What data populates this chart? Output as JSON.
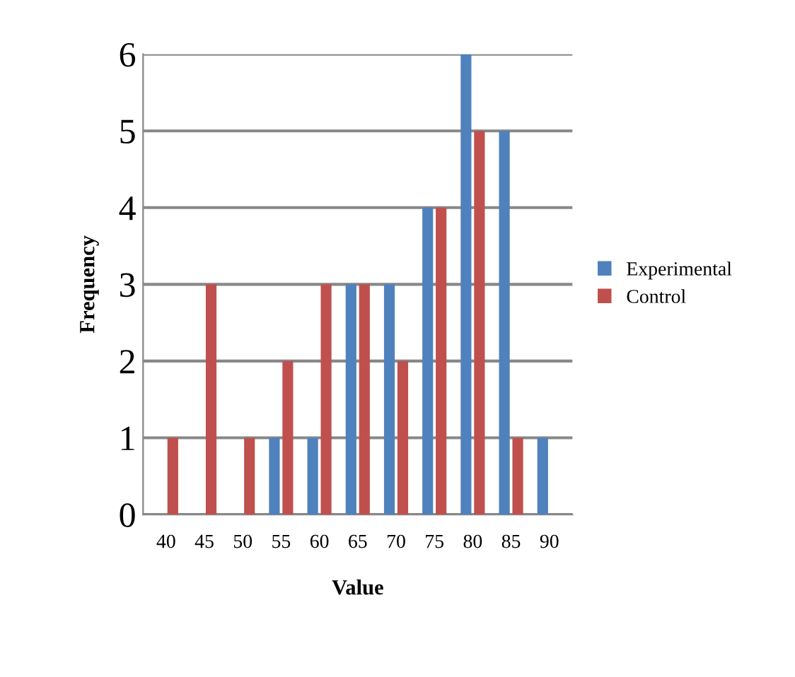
{
  "chart_data": {
    "type": "bar",
    "xlabel": "Value",
    "ylabel": "Frequency",
    "categories": [
      "40",
      "45",
      "50",
      "55",
      "60",
      "65",
      "70",
      "75",
      "80",
      "85",
      "90"
    ],
    "series": [
      {
        "name": "Experimental",
        "color": "#4f81bd",
        "values": [
          0,
          0,
          0,
          1,
          1,
          3,
          3,
          4,
          6,
          5,
          1
        ]
      },
      {
        "name": "Control",
        "color": "#c0504d",
        "values": [
          1,
          3,
          1,
          2,
          3,
          3,
          2,
          4,
          5,
          1,
          0
        ]
      }
    ],
    "ylim": [
      0,
      6
    ],
    "yticks": [
      0,
      1,
      2,
      3,
      4,
      5,
      6
    ],
    "grid": "y",
    "legend": "right"
  }
}
